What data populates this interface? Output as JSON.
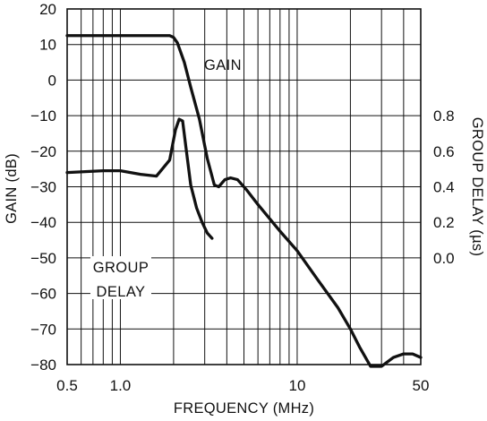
{
  "chart_data": {
    "type": "line",
    "xlabel": "FREQUENCY (MHz)",
    "ylabel": "GAIN (dB)",
    "y2label": "GROUP DELAY (µs)",
    "x_scale": "log",
    "xlim": [
      0.5,
      50
    ],
    "ylim": [
      -80,
      20
    ],
    "y2lim": [
      -0.6,
      1.4
    ],
    "grid": true,
    "x_tick_labels": [
      {
        "value": 0.5,
        "label": "0.5"
      },
      {
        "value": 1.0,
        "label": "1.0"
      },
      {
        "value": 10,
        "label": "10"
      },
      {
        "value": 50,
        "label": "50"
      }
    ],
    "x_minor_gridlines": [
      0.6,
      0.7,
      0.8,
      0.9,
      1,
      2,
      3,
      4,
      5,
      6,
      7,
      8,
      9,
      10,
      20,
      30,
      40
    ],
    "y_tick_labels": [
      "20",
      "10",
      "0",
      "−10",
      "−20",
      "−30",
      "−40",
      "−50",
      "−60",
      "−70",
      "−80"
    ],
    "y_tick_values": [
      20,
      10,
      0,
      -10,
      -20,
      -30,
      -40,
      -50,
      -60,
      -70,
      -80
    ],
    "y2_tick_labels": [
      "0.8",
      "0.6",
      "0.4",
      "0.2",
      "0.0"
    ],
    "y2_tick_values": [
      0.8,
      0.6,
      0.4,
      0.2,
      0.0
    ],
    "series": [
      {
        "name": "GAIN",
        "axis": "left",
        "x": [
          0.5,
          1.0,
          1.5,
          1.9,
          2.0,
          2.1,
          2.3,
          2.5,
          2.8,
          3.1,
          3.4,
          3.6,
          3.9,
          4.2,
          4.6,
          5.2,
          6,
          8,
          10,
          13,
          17,
          20,
          22.5,
          26,
          30,
          35,
          40,
          45,
          50
        ],
        "y": [
          12.5,
          12.5,
          12.5,
          12.5,
          12,
          10.5,
          5,
          -2,
          -11,
          -22,
          -29.5,
          -30,
          -28,
          -27.5,
          -28,
          -31,
          -35,
          -42.5,
          -48,
          -56,
          -64,
          -70,
          -75,
          -80.5,
          -80.5,
          -78,
          -77,
          -77,
          -78
        ]
      },
      {
        "name": "GROUP DELAY",
        "axis": "right",
        "x": [
          0.5,
          0.8,
          1.0,
          1.3,
          1.6,
          1.9,
          2.05,
          2.15,
          2.25,
          2.35,
          2.5,
          2.7,
          2.9,
          3.1,
          3.3
        ],
        "y": [
          0.48,
          0.49,
          0.49,
          0.47,
          0.46,
          0.55,
          0.72,
          0.78,
          0.77,
          0.62,
          0.41,
          0.28,
          0.2,
          0.14,
          0.11
        ]
      }
    ],
    "annotations": [
      "GAIN",
      "GROUP",
      "DELAY"
    ]
  }
}
